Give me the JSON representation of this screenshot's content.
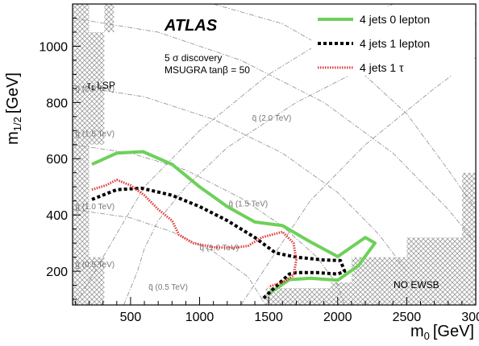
{
  "chart_data": {
    "type": "line",
    "title": "",
    "xlabel": "m0 [GeV]",
    "ylabel": "m1/2 [GeV]",
    "xlim": [
      80,
      3000
    ],
    "ylim": [
      80,
      1150
    ],
    "x_ticks": [
      500,
      1000,
      1500,
      2000,
      2500,
      3000
    ],
    "y_ticks": [
      200,
      400,
      600,
      800,
      1000
    ],
    "x_tick_labels": [
      "500",
      "1000",
      "1500",
      "2000",
      "2500",
      "3000"
    ],
    "y_tick_labels": [
      "200",
      "400",
      "600",
      "800",
      "1000"
    ],
    "legend_position": "top-right",
    "series": [
      {
        "name": "4 jets 0 lepton",
        "color": "#6ed05a",
        "style": "solid",
        "points": [
          [
            220,
            580
          ],
          [
            400,
            620
          ],
          [
            590,
            625
          ],
          [
            800,
            580
          ],
          [
            1000,
            500
          ],
          [
            1200,
            430
          ],
          [
            1400,
            375
          ],
          [
            1600,
            362
          ],
          [
            1800,
            305
          ],
          [
            2000,
            252
          ],
          [
            2200,
            320
          ],
          [
            2270,
            300
          ],
          [
            2150,
            220
          ],
          [
            2000,
            168
          ],
          [
            1800,
            175
          ],
          [
            1650,
            170
          ],
          [
            1500,
            120
          ]
        ]
      },
      {
        "name": "4 jets 1 lepton",
        "color": "#000000",
        "style": "dashed",
        "points": [
          [
            220,
            455
          ],
          [
            400,
            490
          ],
          [
            580,
            495
          ],
          [
            800,
            470
          ],
          [
            1000,
            430
          ],
          [
            1200,
            380
          ],
          [
            1400,
            320
          ],
          [
            1550,
            265
          ],
          [
            1700,
            250
          ],
          [
            1900,
            240
          ],
          [
            2020,
            238
          ],
          [
            2050,
            200
          ],
          [
            2000,
            190
          ],
          [
            1850,
            195
          ],
          [
            1700,
            195
          ],
          [
            1650,
            190
          ],
          [
            1550,
            145
          ],
          [
            1450,
            98
          ]
        ]
      },
      {
        "name": "4 jets 1 τ",
        "color": "#e03a3a",
        "style": "dotted",
        "points": [
          [
            220,
            490
          ],
          [
            320,
            505
          ],
          [
            400,
            525
          ],
          [
            500,
            505
          ],
          [
            600,
            470
          ],
          [
            700,
            420
          ],
          [
            800,
            380
          ],
          [
            850,
            330
          ],
          [
            950,
            300
          ],
          [
            1100,
            285
          ],
          [
            1250,
            283
          ],
          [
            1350,
            290
          ],
          [
            1450,
            320
          ],
          [
            1600,
            340
          ],
          [
            1680,
            300
          ],
          [
            1700,
            240
          ],
          [
            1680,
            185
          ],
          [
            1600,
            160
          ],
          [
            1500,
            145
          ]
        ]
      }
    ],
    "annotations": {
      "atlas": "ATLAS",
      "discovery": "5 σ discovery",
      "model": "MSUGRA tanβ = 50",
      "lsp": "τ1 LSP",
      "no_ewsb": "NO EWSB"
    },
    "contour_labels": [
      {
        "text": "g̃ (2.0 TeV)",
        "x": 100,
        "y": 840
      },
      {
        "text": "g̃ (1.5 TeV)",
        "x": 100,
        "y": 680
      },
      {
        "text": "g̃ (1.0 TeV)",
        "x": 100,
        "y": 420
      },
      {
        "text": "g̃ (0.5 TeV)",
        "x": 100,
        "y": 215
      },
      {
        "text": "q̃ (2.0 TeV)",
        "x": 1380,
        "y": 735
      },
      {
        "text": "q̃ (1.5 TeV)",
        "x": 1210,
        "y": 430
      },
      {
        "text": "q̃ (1.0 TeV)",
        "x": 1000,
        "y": 275
      },
      {
        "text": "q̃ (0.5 TeV)",
        "x": 630,
        "y": 135
      }
    ],
    "excluded_regions": [
      {
        "name": "upper-left",
        "points": [
          [
            80,
            1150
          ],
          [
            380,
            1150
          ],
          [
            380,
            1050
          ],
          [
            310,
            1050
          ],
          [
            310,
            1150
          ]
        ]
      },
      {
        "name": "lsp-region",
        "points": [
          [
            80,
            1150
          ],
          [
            200,
            1150
          ],
          [
            200,
            1050
          ],
          [
            310,
            1050
          ],
          [
            310,
            650
          ],
          [
            200,
            650
          ],
          [
            200,
            550
          ],
          [
            80,
            550
          ]
        ]
      },
      {
        "name": "lower-left",
        "points": [
          [
            80,
            550
          ],
          [
            80,
            80
          ],
          [
            310,
            80
          ],
          [
            310,
            250
          ],
          [
            200,
            250
          ],
          [
            200,
            550
          ]
        ]
      },
      {
        "name": "bottom-strip",
        "points": [
          [
            1480,
            80
          ],
          [
            3000,
            80
          ],
          [
            3000,
            550
          ],
          [
            2900,
            550
          ],
          [
            2900,
            320
          ],
          [
            2500,
            320
          ],
          [
            2500,
            250
          ],
          [
            2100,
            250
          ],
          [
            2100,
            160
          ],
          [
            1950,
            160
          ],
          [
            1950,
            140
          ],
          [
            1480,
            140
          ]
        ]
      }
    ]
  }
}
